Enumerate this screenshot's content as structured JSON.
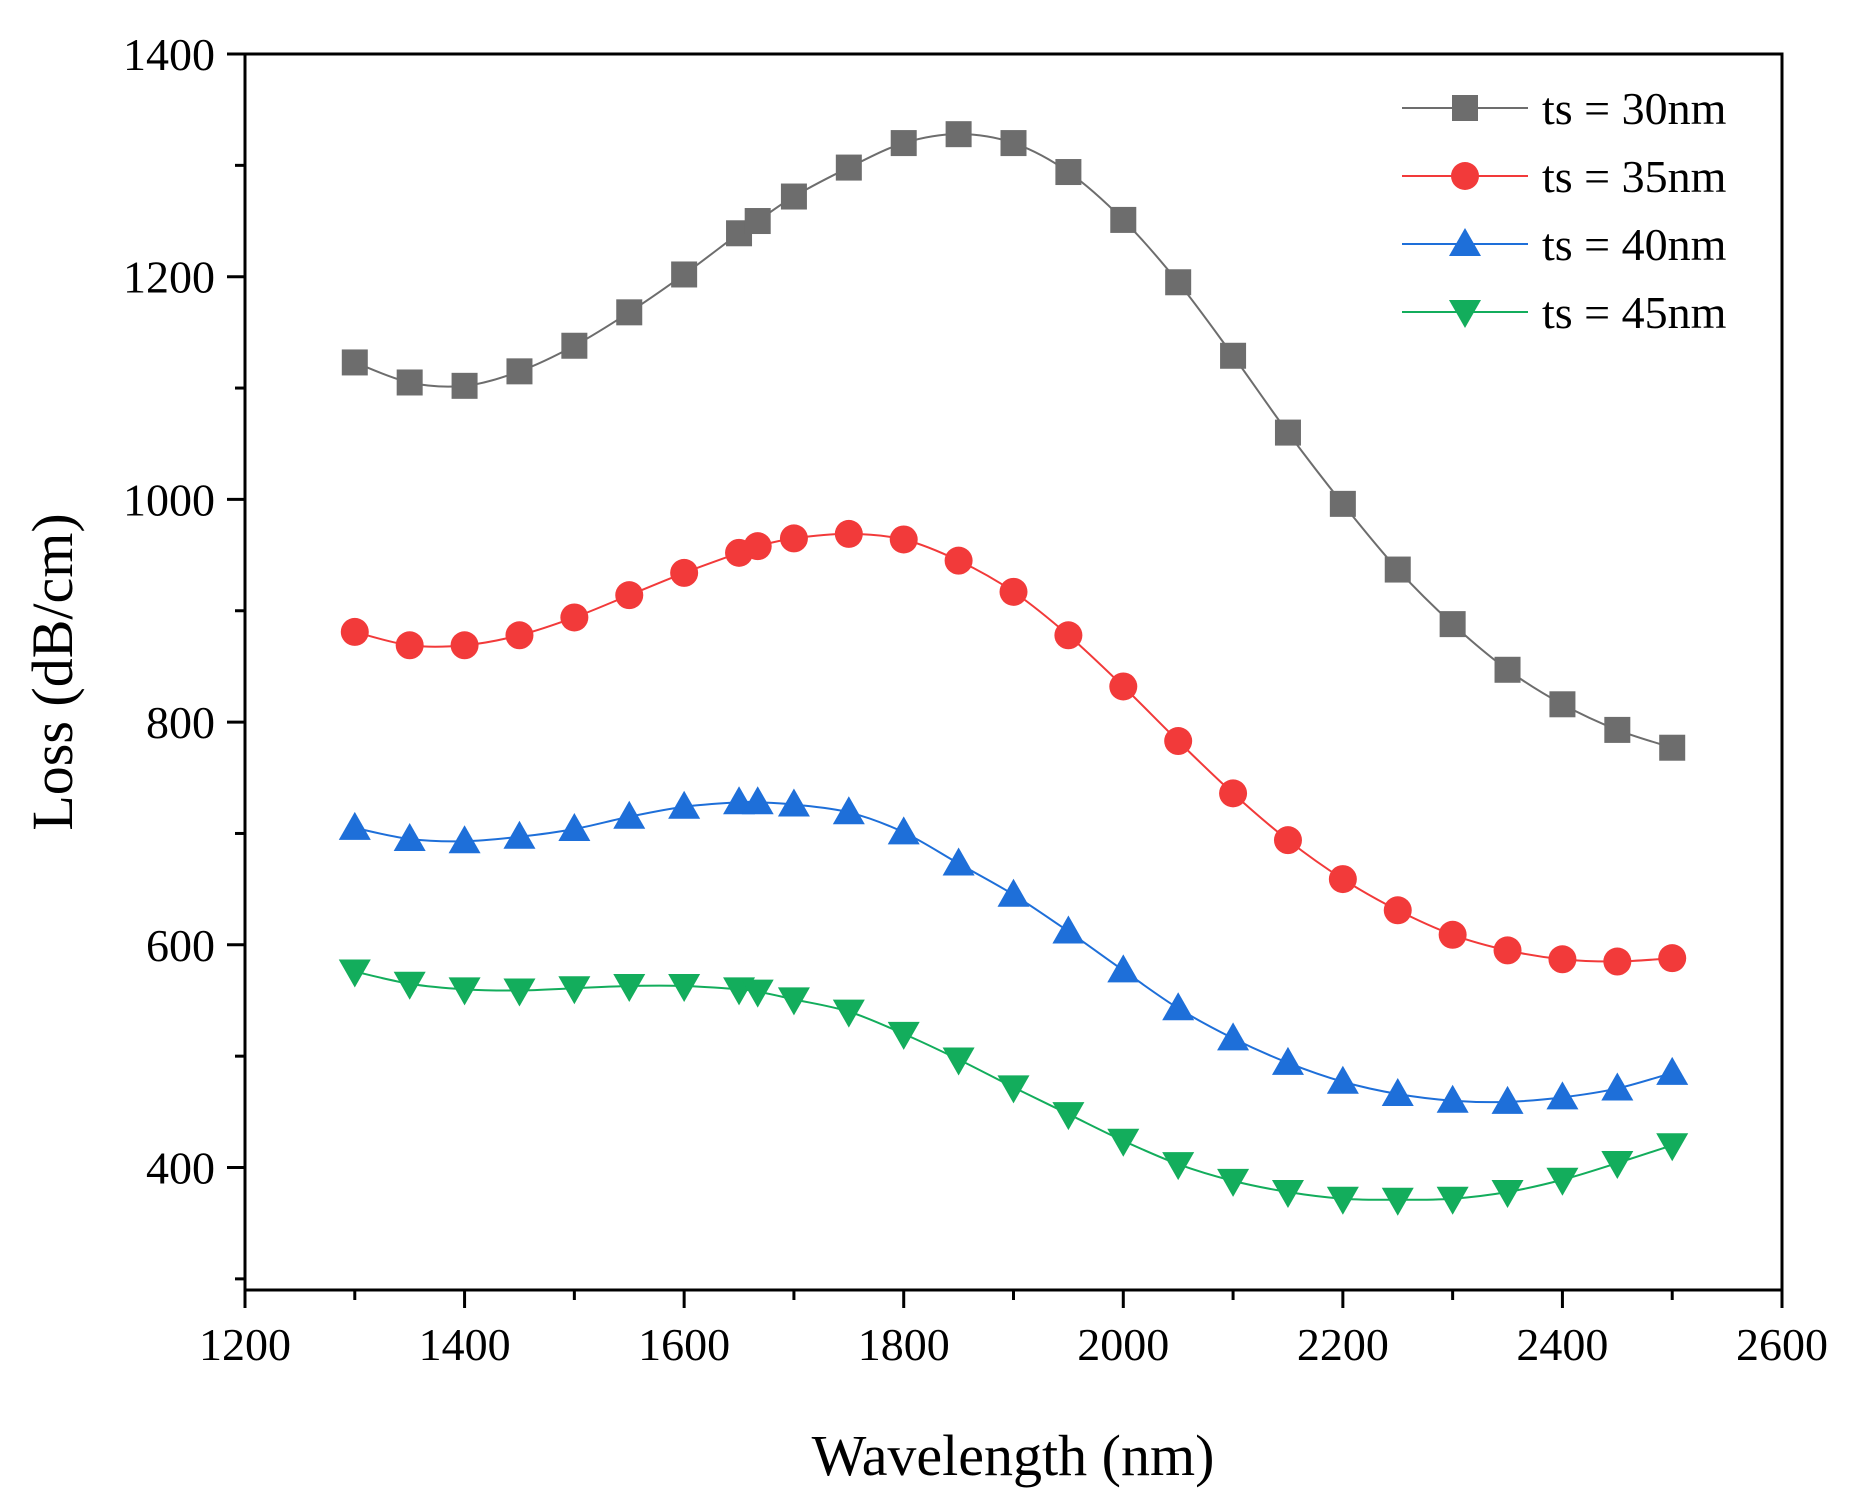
{
  "chart_data": {
    "type": "line",
    "title": "",
    "xlabel": "Wavelength (nm)",
    "ylabel": "Loss (dB/cm)",
    "xlim": [
      1200,
      2600
    ],
    "ylim": [
      290,
      1400
    ],
    "xticks": [
      1200,
      1400,
      1600,
      1800,
      2000,
      2200,
      2400,
      2600
    ],
    "yticks": [
      400,
      600,
      800,
      1000,
      1200,
      1400
    ],
    "xtick_labels": [
      "1200",
      "1400",
      "1600",
      "1800",
      "2000",
      "2200",
      "2400",
      "2600"
    ],
    "ytick_labels": [
      "400",
      "600",
      "800",
      "1000",
      "1200",
      "1400"
    ],
    "grid": false,
    "legend_position": "top-right",
    "x": [
      1300,
      1350,
      1400,
      1450,
      1500,
      1550,
      1600,
      1650,
      1667,
      1700,
      1750,
      1800,
      1850,
      1900,
      1950,
      2000,
      2050,
      2100,
      2150,
      2200,
      2250,
      2300,
      2350,
      2400,
      2450,
      2500
    ],
    "series": [
      {
        "name": "ts = 30nm",
        "color": "#6d6d6d",
        "marker": "square",
        "values": [
          1123,
          1105,
          1102,
          1115,
          1138,
          1168,
          1202,
          1239,
          1250,
          1272,
          1298,
          1320,
          1328,
          1320,
          1294,
          1251,
          1195,
          1129,
          1060,
          996,
          937,
          888,
          847,
          816,
          793,
          777
        ]
      },
      {
        "name": "ts = 35nm",
        "color": "#f23a3a",
        "marker": "circle",
        "values": [
          881,
          869,
          869,
          878,
          894,
          914,
          934,
          952,
          958,
          965,
          969,
          964,
          945,
          917,
          878,
          832,
          783,
          736,
          694,
          659,
          631,
          609,
          595,
          587,
          585,
          588
        ]
      },
      {
        "name": "ts = 40nm",
        "color": "#1e6fd9",
        "marker": "triangle-up",
        "values": [
          705,
          695,
          693,
          697,
          704,
          715,
          724,
          728,
          728,
          726,
          719,
          701,
          673,
          645,
          612,
          577,
          543,
          516,
          494,
          477,
          466,
          460,
          459,
          463,
          471,
          485
        ]
      },
      {
        "name": "ts = 45nm",
        "color": "#13ad5c",
        "marker": "triangle-down",
        "values": [
          576,
          565,
          560,
          559,
          561,
          563,
          563,
          560,
          558,
          551,
          540,
          520,
          497,
          472,
          448,
          424,
          403,
          388,
          378,
          372,
          371,
          372,
          378,
          389,
          404,
          420
        ]
      }
    ]
  }
}
